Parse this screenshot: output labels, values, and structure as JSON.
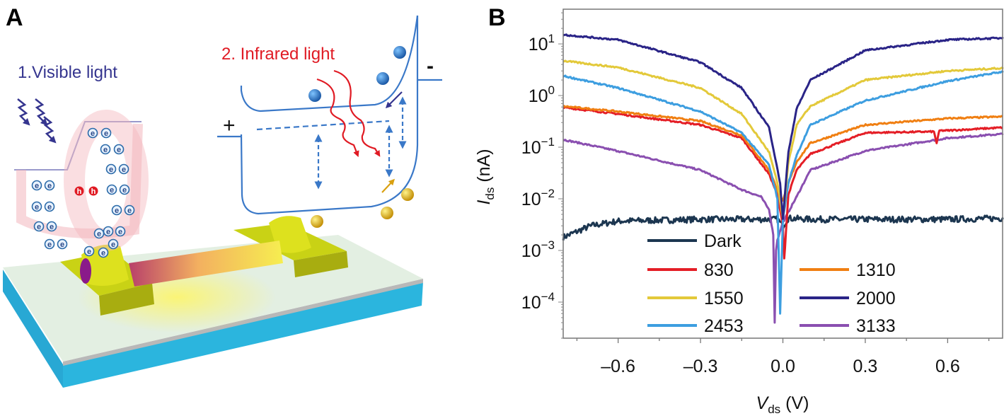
{
  "panel_a": {
    "label": "A",
    "visible_light_label": "1.Visible light",
    "infrared_light_label": "2. Infrared light",
    "plus_label": "+",
    "minus_label": "-",
    "electron_label": "e",
    "hole_label": "h",
    "colors": {
      "visible": "#35358f",
      "infrared": "#e01b24",
      "band": "#3a78c8",
      "substrate": "#2bb5de",
      "electrode": "#d9e21a"
    }
  },
  "panel_b": {
    "label": "B"
  },
  "chart_data": {
    "type": "line",
    "xlabel": {
      "main": "V",
      "sub": "ds",
      "unit": " (V)"
    },
    "ylabel": {
      "main": "I",
      "sub": "ds",
      "unit": " (nA)"
    },
    "xlim": [
      -0.8,
      0.8
    ],
    "ylim": [
      2e-05,
      47
    ],
    "yscale": "log",
    "grid": false,
    "legend_placement": "bottom-center",
    "xticks": [
      {
        "value": -0.6,
        "label": "–0.6"
      },
      {
        "value": -0.3,
        "label": "–0.3"
      },
      {
        "value": 0.0,
        "label": "0.0"
      },
      {
        "value": 0.3,
        "label": "0.3"
      },
      {
        "value": 0.6,
        "label": "0.6"
      }
    ],
    "yticks": [
      {
        "value": 10,
        "base": "10",
        "exp": "1"
      },
      {
        "value": 1,
        "base": "10",
        "exp": "0"
      },
      {
        "value": 0.1,
        "base": "10",
        "exp": "−1"
      },
      {
        "value": 0.01,
        "base": "10",
        "exp": "−2"
      },
      {
        "value": 0.001,
        "base": "10",
        "exp": "−3"
      },
      {
        "value": 0.0001,
        "base": "10",
        "exp": "−4"
      }
    ],
    "series": [
      {
        "name": "Dark",
        "color": "#1c3650",
        "x": [
          -0.8,
          -0.7,
          -0.6,
          -0.3,
          -0.1,
          -0.02,
          0,
          0.02,
          0.1,
          0.3,
          0.6,
          0.8
        ],
        "y": [
          0.0018,
          0.003,
          0.0037,
          0.004,
          0.004,
          0.004,
          0.003,
          0.0042,
          0.004,
          0.004,
          0.004,
          0.0042
        ]
      },
      {
        "name": "830",
        "color": "#e41e26",
        "x": [
          -0.8,
          -0.6,
          -0.3,
          -0.15,
          -0.05,
          -0.02,
          0,
          0.005,
          0.02,
          0.05,
          0.1,
          0.3,
          0.55,
          0.56,
          0.57,
          0.6,
          0.8
        ],
        "y": [
          0.59,
          0.44,
          0.27,
          0.15,
          0.03,
          0.012,
          0.003,
          0.0007,
          0.012,
          0.036,
          0.074,
          0.19,
          0.2,
          0.12,
          0.21,
          0.21,
          0.24
        ]
      },
      {
        "name": "1310",
        "color": "#f07f12",
        "x": [
          -0.8,
          -0.6,
          -0.3,
          -0.15,
          -0.05,
          -0.02,
          0,
          0.02,
          0.05,
          0.1,
          0.3,
          0.6,
          0.8
        ],
        "y": [
          0.62,
          0.49,
          0.32,
          0.17,
          0.036,
          0.015,
          0.009,
          0.02,
          0.052,
          0.12,
          0.27,
          0.36,
          0.39
        ]
      },
      {
        "name": "1550",
        "color": "#e3c93a",
        "x": [
          -0.8,
          -0.6,
          -0.3,
          -0.15,
          -0.05,
          -0.02,
          0,
          0.02,
          0.05,
          0.1,
          0.3,
          0.6,
          0.8
        ],
        "y": [
          4.7,
          3.5,
          1.4,
          0.44,
          0.08,
          0.02,
          0.004,
          0.05,
          0.27,
          0.62,
          2.0,
          3.0,
          3.4
        ]
      },
      {
        "name": "2000",
        "color": "#2a2487",
        "x": [
          -0.8,
          -0.6,
          -0.3,
          -0.15,
          -0.05,
          -0.01,
          0,
          0.02,
          0.05,
          0.1,
          0.3,
          0.6,
          0.8
        ],
        "y": [
          15,
          12,
          4.4,
          1.4,
          0.24,
          0.02,
          0.004,
          0.08,
          0.55,
          2.0,
          7.5,
          12,
          13
        ]
      },
      {
        "name": "2453",
        "color": "#3d9ee0",
        "x": [
          -0.8,
          -0.6,
          -0.3,
          -0.15,
          -0.05,
          -0.02,
          -0.01,
          0,
          0.02,
          0.05,
          0.1,
          0.3,
          0.6,
          0.8
        ],
        "y": [
          2.4,
          1.4,
          0.49,
          0.19,
          0.045,
          0.01,
          6e-05,
          0.004,
          0.02,
          0.07,
          0.27,
          0.8,
          1.9,
          2.9
        ]
      },
      {
        "name": "3133",
        "color": "#8a4fb0",
        "x": [
          -0.8,
          -0.6,
          -0.3,
          -0.15,
          -0.08,
          -0.05,
          -0.035,
          -0.03,
          -0.025,
          -0.02,
          0,
          0.05,
          0.1,
          0.3,
          0.6,
          0.8
        ],
        "y": [
          0.14,
          0.084,
          0.036,
          0.015,
          0.011,
          0.0061,
          0.002,
          4e-05,
          0.001,
          0.0016,
          0.0035,
          0.011,
          0.036,
          0.085,
          0.15,
          0.18
        ]
      }
    ]
  }
}
